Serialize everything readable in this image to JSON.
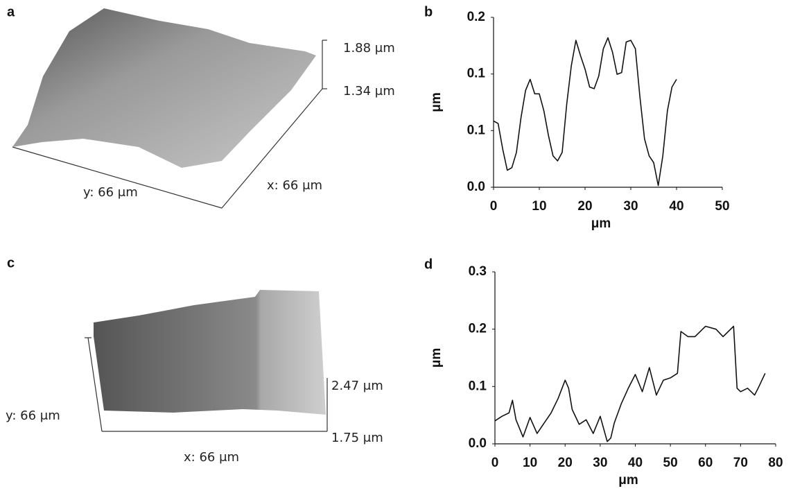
{
  "panels": [
    {
      "label": "a",
      "annotations": [
        "1.88 μm",
        "1.34 μm",
        "x: 66 μm",
        "y: 66 μm"
      ]
    },
    {
      "label": "c",
      "annotations": [
        "2.47 μm",
        "1.75 μm",
        "y: 66 μm",
        "x: 66 μm"
      ]
    }
  ],
  "chart_data": [
    {
      "type": "line",
      "panel": "b",
      "xlabel": "μm",
      "ylabel": "μm",
      "color": "#111111",
      "xlim": [
        0,
        50
      ],
      "xticks": [
        0,
        10,
        20,
        30,
        40,
        50
      ],
      "ylim": [
        0,
        0.2
      ],
      "yticks": [
        {
          "value": 0,
          "label": "0.0"
        },
        {
          "value": 0.0667,
          "label": "0.1"
        },
        {
          "value": 0.1333,
          "label": "0.1"
        },
        {
          "value": 0.2,
          "label": "0.2"
        }
      ],
      "x": [
        0,
        1,
        2,
        3,
        4,
        5,
        6,
        7,
        8,
        9,
        10,
        11,
        12,
        13,
        14,
        15,
        16,
        17,
        18,
        19,
        20,
        21,
        22,
        23,
        24,
        25,
        26,
        27,
        28,
        29,
        30,
        31,
        32,
        33,
        34,
        35,
        36,
        37,
        38,
        39,
        40
      ],
      "values": [
        0.078,
        0.075,
        0.045,
        0.02,
        0.023,
        0.041,
        0.082,
        0.114,
        0.127,
        0.11,
        0.11,
        0.09,
        0.061,
        0.037,
        0.031,
        0.041,
        0.098,
        0.143,
        0.173,
        0.155,
        0.139,
        0.118,
        0.116,
        0.131,
        0.163,
        0.176,
        0.159,
        0.133,
        0.135,
        0.171,
        0.173,
        0.163,
        0.106,
        0.057,
        0.037,
        0.029,
        0.002,
        0.037,
        0.09,
        0.118,
        0.127
      ]
    },
    {
      "type": "line",
      "panel": "d",
      "xlabel": "μm",
      "ylabel": "μm",
      "color": "#111111",
      "xlim": [
        0,
        80
      ],
      "xticks": [
        0,
        10,
        20,
        30,
        40,
        50,
        60,
        70,
        80
      ],
      "ylim": [
        0,
        0.3
      ],
      "yticks": [
        {
          "value": 0,
          "label": "0.0"
        },
        0.1,
        0.2,
        0.3
      ],
      "x": [
        0,
        2,
        4,
        5,
        6,
        8,
        10,
        12,
        14,
        16,
        18,
        20,
        21,
        22,
        24,
        26,
        28,
        30,
        32,
        33,
        34,
        36,
        38,
        40,
        42,
        44,
        46,
        48,
        50,
        52,
        53,
        55,
        57,
        60,
        63,
        65,
        68,
        69,
        70,
        72,
        74,
        75,
        77
      ],
      "values": [
        0.04,
        0.048,
        0.054,
        0.076,
        0.042,
        0.012,
        0.046,
        0.018,
        0.036,
        0.054,
        0.079,
        0.111,
        0.097,
        0.06,
        0.034,
        0.042,
        0.018,
        0.048,
        0.004,
        0.01,
        0.036,
        0.07,
        0.097,
        0.121,
        0.091,
        0.133,
        0.085,
        0.111,
        0.115,
        0.123,
        0.196,
        0.187,
        0.187,
        0.205,
        0.2,
        0.187,
        0.205,
        0.097,
        0.091,
        0.097,
        0.085,
        0.097,
        0.123
      ]
    }
  ]
}
